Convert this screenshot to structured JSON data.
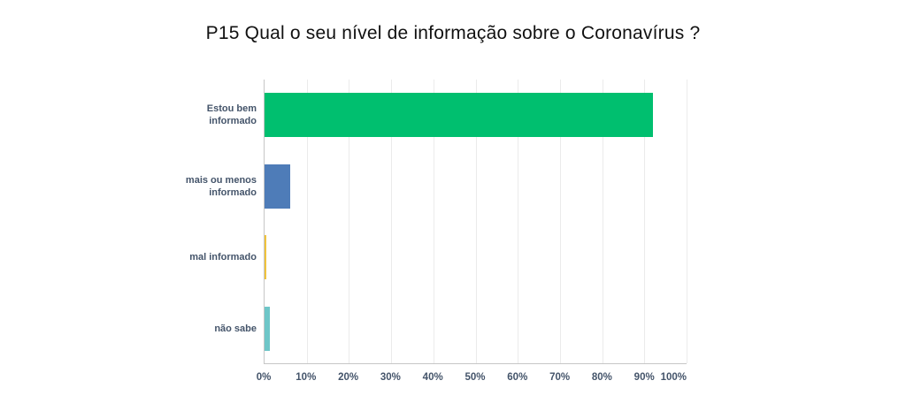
{
  "title": "P15 Qual o seu nível de informação sobre o Coronavírus ?",
  "chart_data": {
    "type": "bar",
    "orientation": "horizontal",
    "title": "P15 Qual o seu nível de informação sobre o Coronavírus ?",
    "categories": [
      "Estou bem informado",
      "mais ou menos informado",
      "mal informado",
      "não sabe"
    ],
    "values": [
      92,
      6,
      0.5,
      1.2
    ],
    "unit": "%",
    "bar_colors": [
      "#00bf6f",
      "#4e7cb8",
      "#f0c33c",
      "#6ec6c8"
    ],
    "xlabel": "",
    "ylabel": "",
    "xlim": [
      0,
      100
    ],
    "x_ticks": [
      "0%",
      "10%",
      "20%",
      "30%",
      "40%",
      "50%",
      "60%",
      "70%",
      "80%",
      "90%",
      "100%"
    ],
    "grid": true,
    "legend": false
  },
  "colors": {
    "title_text": "#111111",
    "axis_label_text": "#44546a",
    "axis_line": "#c6c6c6",
    "gridline": "#ebebeb",
    "background": "#ffffff"
  }
}
